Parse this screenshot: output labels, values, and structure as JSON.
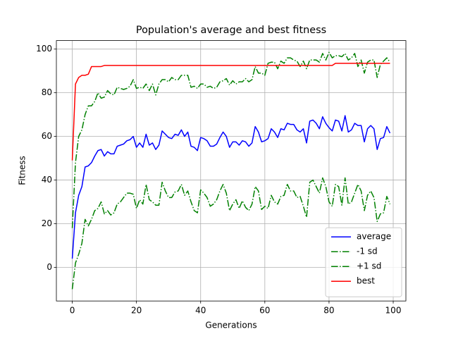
{
  "chart_data": {
    "type": "line",
    "title": "Population's average and best fitness",
    "xlabel": "Generations",
    "ylabel": "Fitness",
    "x": [
      0,
      1,
      2,
      3,
      4,
      5,
      6,
      7,
      8,
      9,
      10,
      11,
      12,
      13,
      14,
      15,
      16,
      17,
      18,
      19,
      20,
      21,
      22,
      23,
      24,
      25,
      26,
      27,
      28,
      29,
      30,
      31,
      32,
      33,
      34,
      35,
      36,
      37,
      38,
      39,
      40,
      41,
      42,
      43,
      44,
      45,
      46,
      47,
      48,
      49,
      50,
      51,
      52,
      53,
      54,
      55,
      56,
      57,
      58,
      59,
      60,
      61,
      62,
      63,
      64,
      65,
      66,
      67,
      68,
      69,
      70,
      71,
      72,
      73,
      74,
      75,
      76,
      77,
      78,
      79,
      80,
      81,
      82,
      83,
      84,
      85,
      86,
      87,
      88,
      89,
      90,
      91,
      92,
      93,
      94,
      95,
      96,
      97,
      98,
      99
    ],
    "series": [
      {
        "name": "average",
        "color": "#0000ff",
        "linestyle": "solid",
        "values": [
          4,
          25,
          33,
          37,
          46,
          46.5,
          48,
          51,
          53.5,
          54,
          51,
          53,
          52,
          52,
          55.5,
          56,
          56.5,
          58,
          58.5,
          60,
          55,
          57,
          55,
          61,
          56,
          57,
          54,
          56,
          62.5,
          61,
          59.5,
          59,
          61,
          60.5,
          63,
          60,
          62,
          55.5,
          55,
          53.5,
          59.5,
          59,
          58,
          55.5,
          55.5,
          56.5,
          59.5,
          62,
          60,
          55,
          57.5,
          57.5,
          56,
          58,
          57.5,
          55.5,
          57,
          64.5,
          62,
          57.5,
          58,
          59,
          63.5,
          62,
          59.5,
          63.5,
          63,
          66,
          65.5,
          65.5,
          63,
          62,
          63.5,
          57,
          67,
          67.5,
          66,
          63.5,
          69,
          66,
          64,
          62.5,
          67.5,
          67,
          62.5,
          69.5,
          62,
          63,
          66,
          65,
          65,
          57.5,
          63.5,
          65,
          63.5,
          54,
          59,
          59.5,
          64.5,
          61.5
        ]
      },
      {
        "name": "-1 sd",
        "color": "#008000",
        "linestyle": "dashdot",
        "values": [
          -10,
          2,
          6,
          11,
          22,
          19,
          22,
          26,
          27,
          30,
          24.5,
          26,
          24,
          25,
          29,
          30,
          32,
          34,
          34,
          33.5,
          27,
          31,
          29,
          38,
          31,
          30,
          28.5,
          28.5,
          39,
          35,
          32,
          32,
          34.5,
          35,
          38,
          33,
          35,
          30,
          26,
          25,
          35.5,
          34,
          32,
          28,
          29,
          31,
          35,
          38,
          34,
          26,
          29,
          31,
          27,
          30.5,
          27.5,
          26,
          29,
          37,
          35,
          26.5,
          28,
          27,
          33,
          30,
          29,
          32.5,
          33,
          38,
          35,
          35,
          32,
          32.5,
          28,
          23,
          39,
          40,
          37,
          34,
          41,
          37,
          30,
          28,
          38,
          37,
          28.5,
          41,
          29,
          30,
          34,
          38,
          35,
          26,
          33,
          35,
          32,
          21,
          24.5,
          25,
          32.5,
          29
        ]
      },
      {
        "name": "+1 sd",
        "color": "#008000",
        "linestyle": "dashdot",
        "values": [
          18,
          48,
          60,
          63,
          70,
          74,
          74,
          76,
          80,
          77.5,
          78,
          81,
          79.5,
          79,
          82.5,
          82,
          81.5,
          82,
          83,
          86,
          82,
          82.5,
          82,
          84,
          81,
          84,
          79,
          84,
          86,
          86,
          85,
          87,
          86,
          86,
          88,
          88,
          88,
          82.5,
          83,
          82,
          84,
          84,
          82.5,
          83,
          82,
          82.5,
          85,
          85.5,
          86.5,
          83.5,
          85.5,
          84,
          85,
          85,
          86.5,
          85,
          86,
          92,
          89,
          89,
          88,
          93.5,
          94,
          94,
          91,
          94.5,
          93.5,
          96,
          96,
          95,
          94.5,
          92,
          94.5,
          91,
          95,
          95,
          95,
          94,
          98,
          95,
          98.5,
          96,
          97,
          97,
          96.5,
          98,
          95,
          96,
          98,
          92,
          95,
          89,
          94,
          95,
          95,
          87,
          93,
          94.5,
          96,
          94
        ]
      },
      {
        "name": "best",
        "color": "#ff0000",
        "linestyle": "solid",
        "values": [
          49,
          84,
          87,
          88,
          88,
          88.5,
          92,
          92,
          92,
          92,
          92.5,
          92.5,
          92.5,
          92.5,
          92.5,
          92.5,
          92.5,
          92.5,
          92.5,
          92.5,
          92.5,
          92.5,
          92.5,
          92.5,
          92.5,
          92.5,
          92.5,
          92.5,
          92.5,
          92.5,
          92.5,
          92.5,
          92.5,
          92.5,
          92.5,
          92.5,
          92.5,
          92.5,
          92.5,
          92.5,
          92.5,
          92.5,
          92.5,
          92.5,
          92.5,
          92.5,
          92.5,
          92.5,
          92.5,
          92.5,
          92.5,
          92.5,
          92.5,
          92.5,
          92.5,
          92.5,
          92.5,
          92.5,
          92.5,
          92.5,
          92.5,
          92.5,
          92.5,
          92.5,
          92.5,
          92.5,
          92.5,
          92.5,
          92.5,
          92.5,
          92.5,
          92.5,
          92.5,
          92.5,
          92.5,
          92.5,
          92.5,
          92.5,
          92.5,
          92.5,
          92.5,
          92.5,
          93.5,
          93.5,
          93.5,
          93.5,
          93.5,
          93.5,
          93.5,
          93.5,
          93.5,
          93.5,
          93.5,
          93.5,
          93.5,
          93.5,
          93.5,
          93.5,
          93.5,
          93.5
        ]
      }
    ],
    "xlim": [
      -4.95,
      103.95
    ],
    "xticks": [
      0,
      20,
      40,
      60,
      80,
      100
    ],
    "ylim": [
      -15.4,
      103.9
    ],
    "yticks": [
      0,
      20,
      40,
      60,
      80,
      100
    ],
    "grid": true,
    "legend": "lower right"
  }
}
